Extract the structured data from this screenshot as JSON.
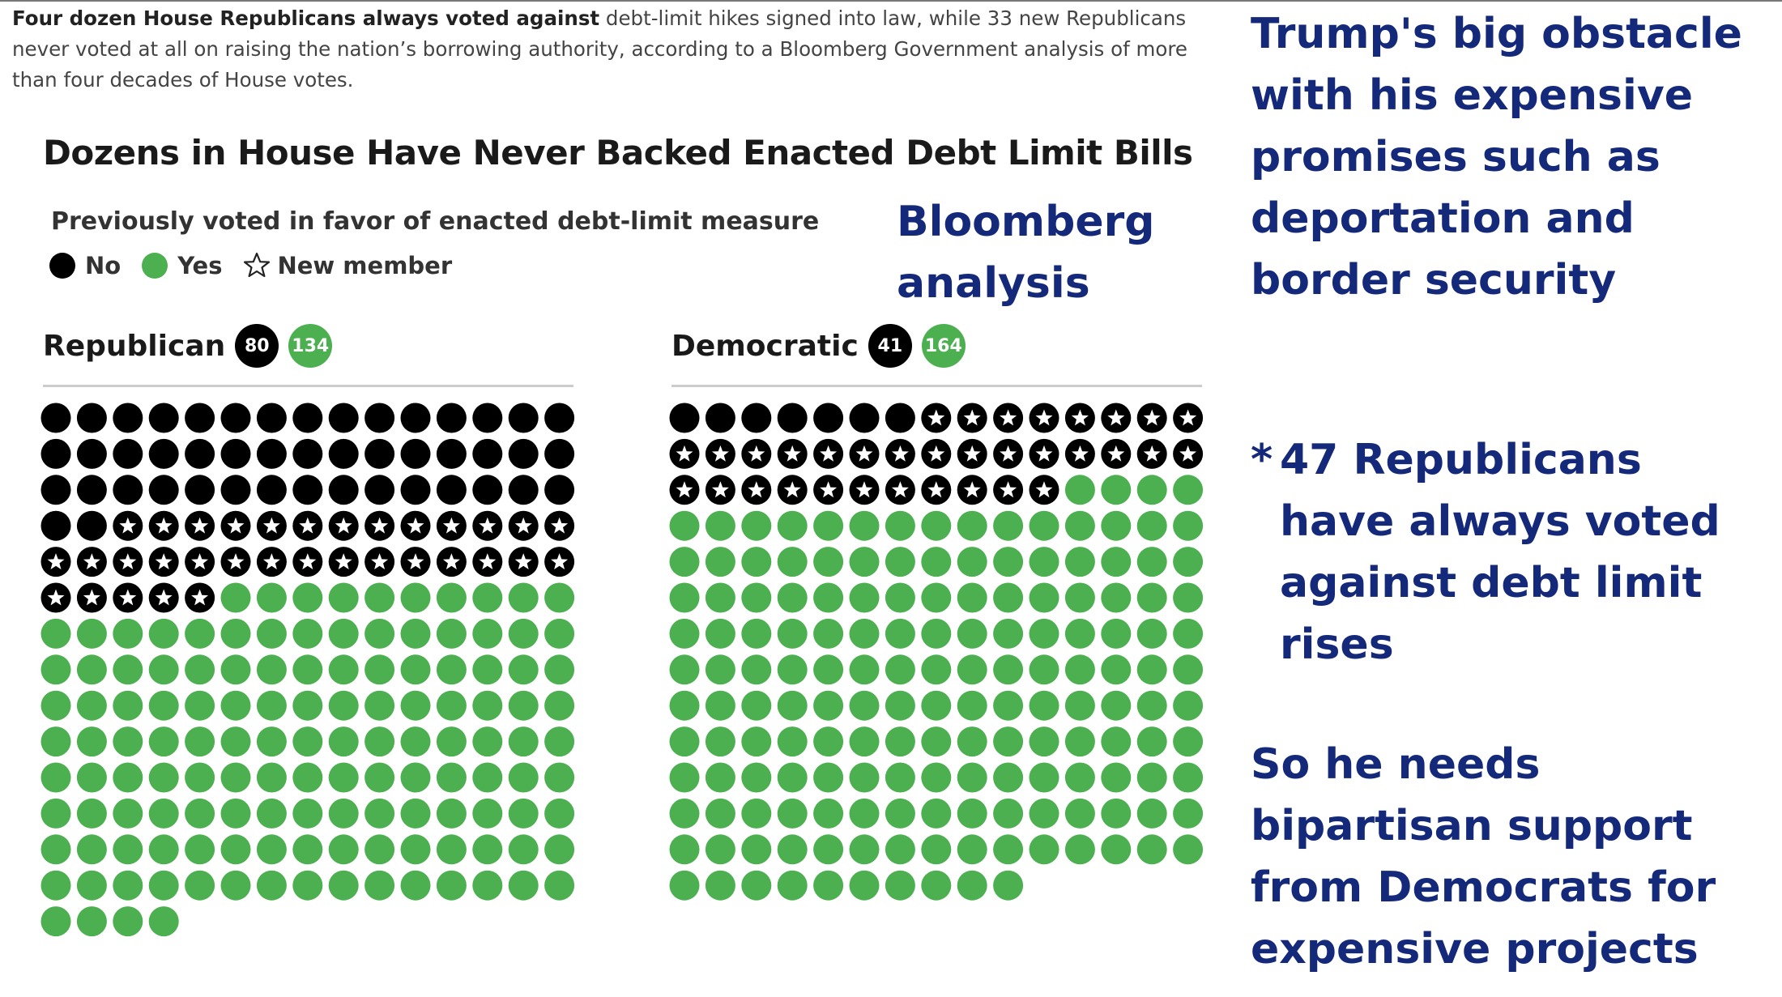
{
  "intro": {
    "bold": "Four dozen House Republicans always voted against",
    "rest": " debt-limit hikes signed into law, while 33 new Republicans never voted at all on raising the nation’s borrowing authority, according to a Bloomberg Government analysis of more than four decades of House votes."
  },
  "chart_data": {
    "type": "waffle",
    "title": "Dozens in House Have Never Backed Enacted Debt Limit Bills",
    "legend_title": "Previously voted in favor of enacted debt-limit measure",
    "legend": [
      {
        "key": "no",
        "label": "No",
        "color": "#000000"
      },
      {
        "key": "yes",
        "label": "Yes",
        "color": "#4caf50"
      },
      {
        "key": "new",
        "label": "New member",
        "color": "#000000"
      }
    ],
    "columns": 15,
    "parties": [
      {
        "name": "Republican",
        "no": 47,
        "new": 33,
        "yes": 134,
        "badge_no": "80",
        "badge_yes": "134"
      },
      {
        "name": "Democratic",
        "no": 7,
        "new": 34,
        "yes": 164,
        "badge_no": "41",
        "badge_yes": "164"
      }
    ]
  },
  "analysis_label": "Bloomberg analysis",
  "notes": {
    "main": "Trump's big obstacle with his expensive promises such as deportation and border security",
    "star": "*",
    "point_line1": "47 Republicans",
    "point_rest": "have always voted against debt limit rises",
    "conclusion": "So he needs bipartisan support from Democrats for expensive projects"
  }
}
